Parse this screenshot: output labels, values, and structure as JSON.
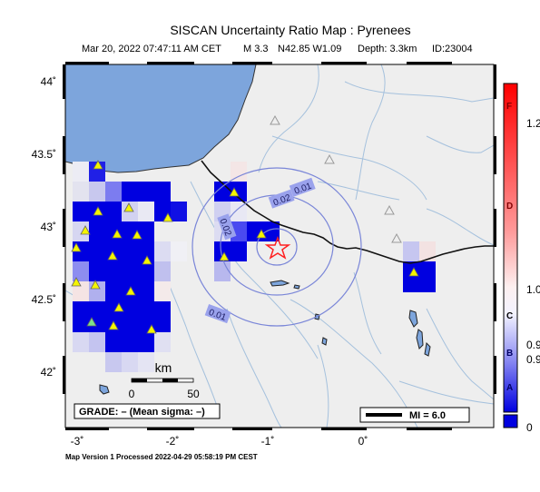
{
  "map": {
    "title": "SISCAN Uncertainty Ratio Map : Pyrenees",
    "event": {
      "datetime": "Mar 20, 2022 07:47:11 AM CET",
      "magnitude": "M 3.3",
      "location": "N42.85 W1.09",
      "depth": "Depth: 3.3km",
      "id": "ID:23004",
      "lat": 42.85,
      "lon": -1.09
    },
    "lat_ticks": [
      {
        "value": 44,
        "label": "44˚"
      },
      {
        "value": 43.5,
        "label": "43.5˚"
      },
      {
        "value": 43,
        "label": "43˚"
      },
      {
        "value": 42.5,
        "label": "42.5˚"
      },
      {
        "value": 42,
        "label": "42˚"
      }
    ],
    "lon_ticks": [
      {
        "value": -3,
        "label": "-3˚"
      },
      {
        "value": -2,
        "label": "-2˚"
      },
      {
        "value": -1,
        "label": "-1˚"
      },
      {
        "value": 0,
        "label": "0˚"
      }
    ],
    "contour_labels": [
      {
        "text": "0.01",
        "lon": -0.92,
        "lat": 43.27
      },
      {
        "text": "0.02",
        "lon": -1.14,
        "lat": 43.19
      },
      {
        "text": "0.02",
        "lon": -1.72,
        "lat": 43.0
      },
      {
        "text": "0.01",
        "lon": -1.81,
        "lat": 42.4
      }
    ],
    "scale_bar": {
      "unit": "km",
      "start_label": "0",
      "end_label": "50"
    },
    "grade": "GRADE: – (Mean sigma: –)",
    "mi_legend": "MI = 6.0",
    "footer": "Map Version 1 Processed 2022-04-29 05:58:19 PM CEST",
    "colors": {
      "sea": "#7da5dc",
      "land": "#eeeeee",
      "river": "#9dbbd9",
      "contour": "#7a86d8",
      "cell_blue": "#0000e0",
      "station": "#f4f400",
      "station_green": "#7ee08a",
      "epicenter": "#ff2020"
    }
  },
  "colorbar": {
    "right_labels": [
      "1.2",
      "1.0",
      "0.9",
      "0.9",
      "0"
    ],
    "left_labels": [
      "F",
      "D",
      "C",
      "B",
      "A"
    ]
  }
}
